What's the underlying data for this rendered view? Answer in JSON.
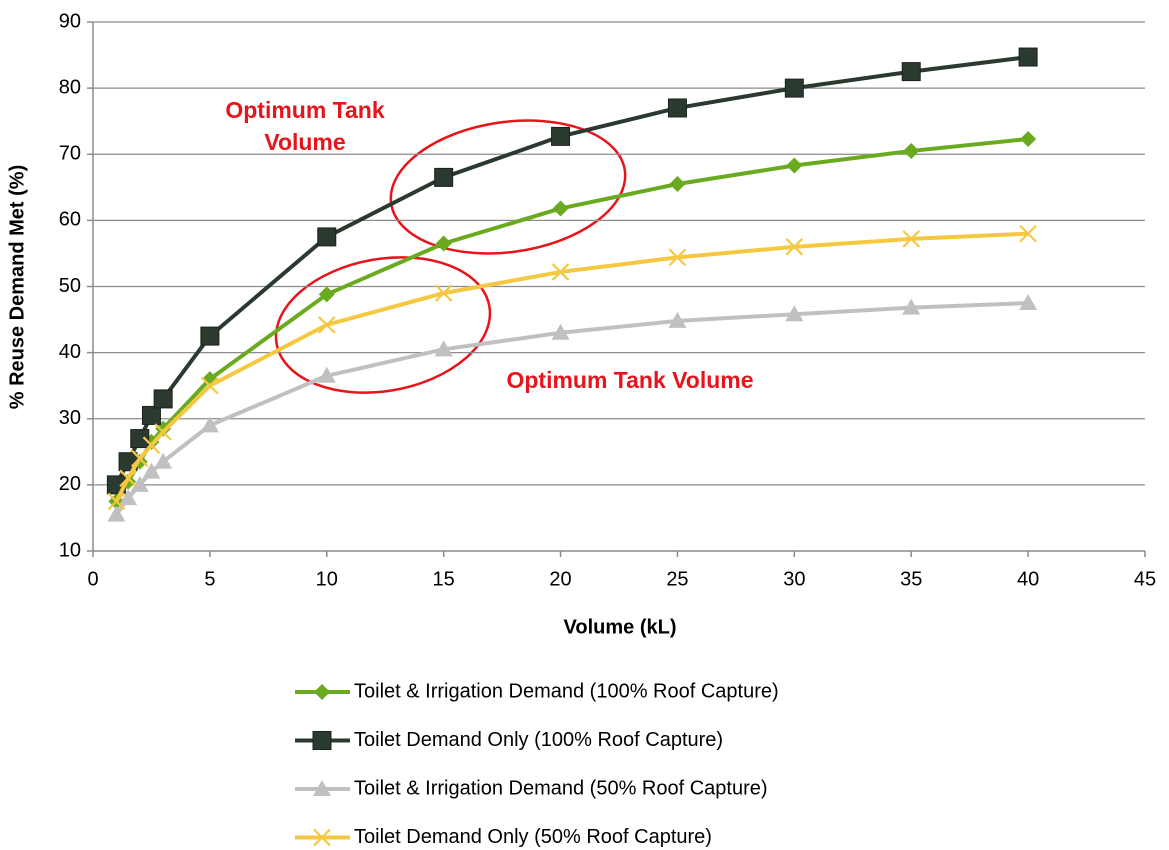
{
  "chart_data": {
    "type": "line",
    "xlabel": "Volume (kL)",
    "ylabel": "% Reuse Demand Met (%)",
    "x": [
      1,
      1.5,
      2,
      2.5,
      3,
      5,
      10,
      15,
      20,
      25,
      30,
      35,
      40
    ],
    "series": [
      {
        "name": "Toilet & Irrigation Demand (100% Roof Capture)",
        "color": "#6aaa1e",
        "marker": "diamond",
        "values": [
          17.5,
          20.5,
          23.5,
          26.5,
          28.5,
          36,
          48.8,
          56.5,
          61.8,
          65.5,
          68.3,
          70.5,
          72.3
        ]
      },
      {
        "name": "Toilet Demand Only (100% Roof Capture)",
        "color": "#2b3a2f",
        "marker": "square",
        "values": [
          20,
          23.5,
          27,
          30.5,
          33,
          42.5,
          57.5,
          66.5,
          72.7,
          77,
          80,
          82.5,
          84.7
        ]
      },
      {
        "name": "Toilet & Irrigation Demand (50% Roof Capture)",
        "color": "#c0c0c0",
        "marker": "triangle",
        "values": [
          15.5,
          18,
          20,
          22,
          23.5,
          29,
          36.5,
          40.5,
          43,
          44.8,
          45.8,
          46.8,
          47.5
        ]
      },
      {
        "name": "Toilet Demand Only (50% Roof Capture)",
        "color": "#f5c842",
        "marker": "x",
        "values": [
          17.5,
          21,
          24,
          26,
          28,
          35,
          44.2,
          49,
          52.2,
          54.4,
          56,
          57.2,
          58
        ]
      }
    ],
    "xlim": [
      0,
      45
    ],
    "xticks": [
      0,
      5,
      10,
      15,
      20,
      25,
      30,
      35,
      40,
      45
    ],
    "ylim": [
      10,
      90
    ],
    "yticks": [
      10,
      20,
      30,
      40,
      50,
      60,
      70,
      80,
      90
    ],
    "grid": true,
    "legend": "bottom",
    "annotations": [
      {
        "lines": [
          "Optimum Tank",
          "Volume"
        ],
        "color": "#e8141c"
      },
      {
        "lines": [
          "Optimum Tank Volume"
        ],
        "color": "#e8141c"
      }
    ]
  }
}
